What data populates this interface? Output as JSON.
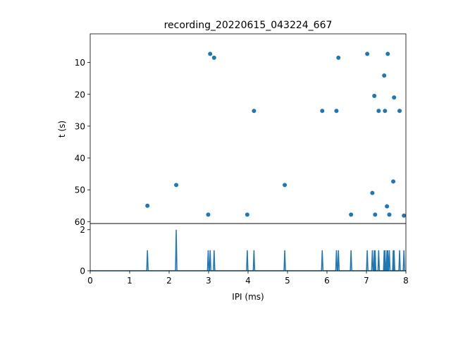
{
  "chart_data": [
    {
      "type": "scatter",
      "title": "recording_20220615_043224_667",
      "xlabel": "",
      "ylabel": "t (s)",
      "xlim": [
        0,
        8
      ],
      "ylim": [
        60.6,
        1
      ],
      "y_inverted": true,
      "yticks": [
        "10",
        "20",
        "30",
        "40",
        "50",
        "60"
      ],
      "ytick_values": [
        10,
        20,
        30,
        40,
        50,
        60
      ],
      "color": "#1f77b4",
      "points": [
        [
          3.04,
          7.3
        ],
        [
          3.14,
          8.5
        ],
        [
          2.18,
          48.5
        ],
        [
          1.45,
          55.0
        ],
        [
          2.99,
          57.8
        ],
        [
          3.98,
          57.8
        ],
        [
          6.29,
          8.5
        ],
        [
          7.02,
          7.3
        ],
        [
          7.54,
          7.3
        ],
        [
          7.45,
          14.1
        ],
        [
          7.2,
          20.5
        ],
        [
          7.7,
          21.0
        ],
        [
          4.15,
          25.2
        ],
        [
          5.88,
          25.2
        ],
        [
          6.24,
          25.2
        ],
        [
          7.31,
          25.2
        ],
        [
          7.47,
          25.2
        ],
        [
          7.84,
          25.2
        ],
        [
          4.93,
          48.5
        ],
        [
          7.68,
          47.4
        ],
        [
          7.15,
          51.0
        ],
        [
          7.52,
          55.2
        ],
        [
          6.61,
          57.8
        ],
        [
          7.22,
          57.8
        ],
        [
          7.58,
          57.8
        ],
        [
          7.95,
          58.1
        ]
      ]
    },
    {
      "type": "line",
      "xlabel": "IPI (ms)",
      "ylabel": "",
      "xlim": [
        0,
        8
      ],
      "ylim": [
        0,
        2.3
      ],
      "xticks": [
        "0",
        "1",
        "2",
        "3",
        "4",
        "5",
        "6",
        "7",
        "8"
      ],
      "xtick_values": [
        0,
        1,
        2,
        3,
        4,
        5,
        6,
        7,
        8
      ],
      "yticks": [
        "0",
        "2"
      ],
      "ytick_values": [
        0,
        2
      ],
      "color": "#1f77b4",
      "spikes": [
        [
          1.45,
          1
        ],
        [
          2.18,
          2
        ],
        [
          2.99,
          1
        ],
        [
          3.04,
          1
        ],
        [
          3.14,
          1
        ],
        [
          3.98,
          1
        ],
        [
          4.15,
          1
        ],
        [
          4.93,
          1
        ],
        [
          5.88,
          1
        ],
        [
          6.24,
          1
        ],
        [
          6.29,
          1
        ],
        [
          6.61,
          1
        ],
        [
          7.02,
          1
        ],
        [
          7.15,
          1
        ],
        [
          7.2,
          1
        ],
        [
          7.22,
          1
        ],
        [
          7.31,
          1
        ],
        [
          7.45,
          1
        ],
        [
          7.47,
          1
        ],
        [
          7.52,
          1
        ],
        [
          7.54,
          1
        ],
        [
          7.58,
          1
        ],
        [
          7.68,
          1
        ],
        [
          7.7,
          1
        ],
        [
          7.84,
          1
        ],
        [
          7.95,
          1
        ]
      ]
    }
  ]
}
